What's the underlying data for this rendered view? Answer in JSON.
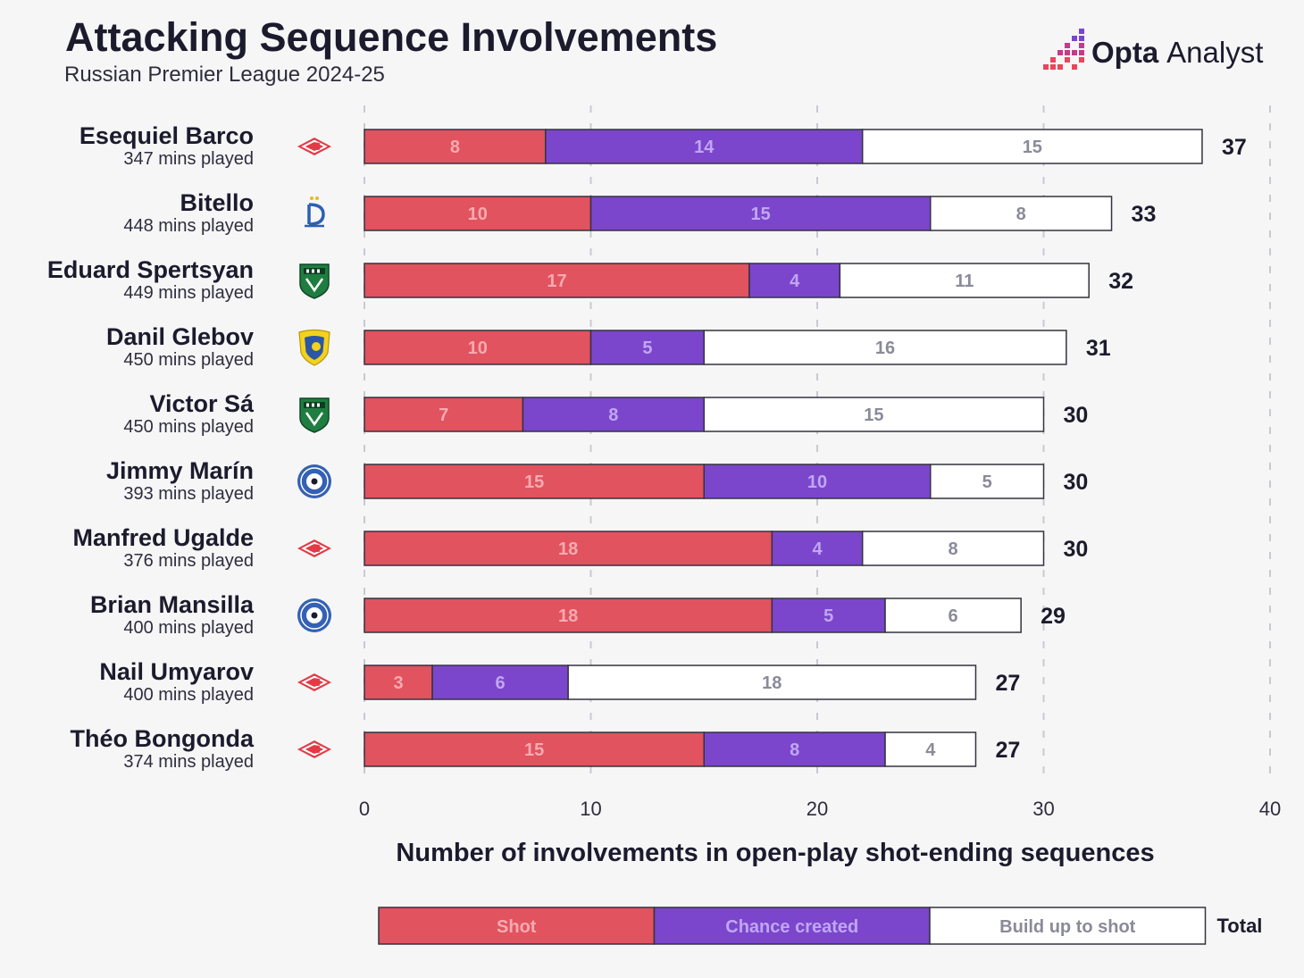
{
  "brand": {
    "wordmark_bold": "Opta",
    "wordmark_light": "Analyst",
    "icon": "opta-pixel-logo-icon"
  },
  "chart_data": {
    "type": "bar",
    "orientation": "horizontal",
    "stacked": true,
    "title": "Attacking Sequence Involvements",
    "subtitle": "Russian Premier League 2024-25",
    "xlabel": "Number of involvements in open-play shot-ending sequences",
    "xlim": [
      0,
      40
    ],
    "xticks": [
      0,
      10,
      20,
      30,
      40
    ],
    "grid": true,
    "legend": "bottom",
    "legend_total_label": "Total",
    "categories": [
      "Esequiel Barco",
      "Bitello",
      "Eduard Spertsyan",
      "Danil Glebov",
      "Victor Sá",
      "Jimmy Marín",
      "Manfred Ugalde",
      "Brian Mansilla",
      "Nail Umyarov",
      "Théo Bongonda"
    ],
    "minutes_played": [
      "347 mins played",
      "448 mins played",
      "449 mins played",
      "450 mins played",
      "450 mins played",
      "393 mins played",
      "376 mins played",
      "400 mins played",
      "400 mins played",
      "374 mins played"
    ],
    "club_icons": [
      "spartak-crest-icon",
      "dynamo-crest-icon",
      "krasnodar-crest-icon",
      "rostov-crest-icon",
      "krasnodar-crest-icon",
      "orenburg-crest-icon",
      "spartak-crest-icon",
      "orenburg-crest-icon",
      "spartak-crest-icon",
      "spartak-crest-icon"
    ],
    "series": [
      {
        "name": "Shot",
        "color": "#e0535f",
        "label_color": "#f7aab1",
        "values": [
          8,
          10,
          17,
          10,
          7,
          15,
          18,
          18,
          3,
          15
        ]
      },
      {
        "name": "Chance created",
        "color": "#7b46cc",
        "label_color": "#c1a6f2",
        "values": [
          14,
          15,
          4,
          5,
          8,
          10,
          4,
          5,
          6,
          8
        ]
      },
      {
        "name": "Build up to shot",
        "color": "#ffffff",
        "label_color": "#8a8a99",
        "values": [
          15,
          8,
          11,
          16,
          15,
          5,
          8,
          6,
          18,
          4
        ]
      }
    ],
    "totals": [
      37,
      33,
      32,
      31,
      30,
      30,
      30,
      29,
      27,
      27
    ]
  }
}
